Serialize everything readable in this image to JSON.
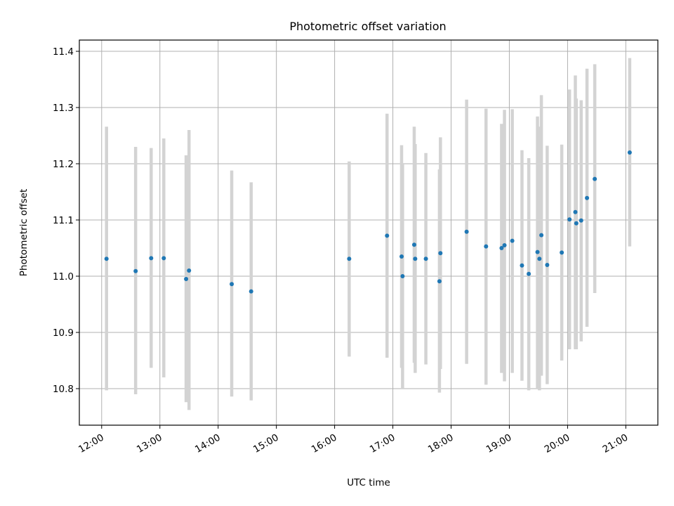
{
  "chart_data": {
    "type": "scatter",
    "title": "Photometric offset variation",
    "xlabel": "UTC time",
    "ylabel": "Photometric offset",
    "xlim": [
      "11:37",
      "21:33"
    ],
    "ylim": [
      10.735,
      11.42
    ],
    "grid": true,
    "x_tick_labels": [
      "12:00",
      "13:00",
      "14:00",
      "15:00",
      "16:00",
      "17:00",
      "18:00",
      "19:00",
      "20:00",
      "21:00"
    ],
    "y_tick_labels": [
      "10.8",
      "10.9",
      "11.0",
      "11.1",
      "11.2",
      "11.3",
      "11.4"
    ],
    "y_ticks": [
      10.8,
      10.9,
      11.0,
      11.1,
      11.2,
      11.3,
      11.4
    ],
    "point_color": "#1f77b4",
    "errorbar_color": "#d3d3d3",
    "points": [
      {
        "x": "12:05",
        "y": 11.031,
        "ylow": 10.797,
        "yhigh": 11.266
      },
      {
        "x": "12:35",
        "y": 11.009,
        "ylow": 10.79,
        "yhigh": 11.23
      },
      {
        "x": "12:51",
        "y": 11.032,
        "ylow": 10.837,
        "yhigh": 11.228
      },
      {
        "x": "13:04",
        "y": 11.032,
        "ylow": 10.82,
        "yhigh": 11.245
      },
      {
        "x": "13:27",
        "y": 10.995,
        "ylow": 10.776,
        "yhigh": 11.215
      },
      {
        "x": "13:30",
        "y": 11.01,
        "ylow": 10.762,
        "yhigh": 11.26
      },
      {
        "x": "14:14",
        "y": 10.986,
        "ylow": 10.786,
        "yhigh": 11.188
      },
      {
        "x": "14:34",
        "y": 10.973,
        "ylow": 10.779,
        "yhigh": 11.167
      },
      {
        "x": "16:15",
        "y": 11.031,
        "ylow": 10.857,
        "yhigh": 11.204
      },
      {
        "x": "16:54",
        "y": 11.072,
        "ylow": 10.855,
        "yhigh": 11.289
      },
      {
        "x": "17:09",
        "y": 11.035,
        "ylow": 10.837,
        "yhigh": 11.233
      },
      {
        "x": "17:10",
        "y": 11.0,
        "ylow": 10.8,
        "yhigh": 11.2
      },
      {
        "x": "17:22",
        "y": 11.056,
        "ylow": 10.846,
        "yhigh": 11.266
      },
      {
        "x": "17:23",
        "y": 11.031,
        "ylow": 10.828,
        "yhigh": 11.235
      },
      {
        "x": "17:34",
        "y": 11.031,
        "ylow": 10.843,
        "yhigh": 11.219
      },
      {
        "x": "17:48",
        "y": 10.991,
        "ylow": 10.793,
        "yhigh": 11.19
      },
      {
        "x": "17:49",
        "y": 11.041,
        "ylow": 10.835,
        "yhigh": 11.247
      },
      {
        "x": "18:16",
        "y": 11.079,
        "ylow": 10.844,
        "yhigh": 11.314
      },
      {
        "x": "18:36",
        "y": 11.053,
        "ylow": 10.807,
        "yhigh": 11.298
      },
      {
        "x": "18:52",
        "y": 11.05,
        "ylow": 10.828,
        "yhigh": 11.271
      },
      {
        "x": "18:55",
        "y": 11.055,
        "ylow": 10.813,
        "yhigh": 11.296
      },
      {
        "x": "19:03",
        "y": 11.063,
        "ylow": 10.828,
        "yhigh": 11.297
      },
      {
        "x": "19:13",
        "y": 11.019,
        "ylow": 10.814,
        "yhigh": 11.224
      },
      {
        "x": "19:20",
        "y": 11.004,
        "ylow": 10.797,
        "yhigh": 11.21
      },
      {
        "x": "19:29",
        "y": 11.043,
        "ylow": 10.8,
        "yhigh": 11.284
      },
      {
        "x": "19:31",
        "y": 11.031,
        "ylow": 10.797,
        "yhigh": 11.266
      },
      {
        "x": "19:33",
        "y": 11.073,
        "ylow": 10.823,
        "yhigh": 11.322
      },
      {
        "x": "19:39",
        "y": 11.02,
        "ylow": 10.808,
        "yhigh": 11.232
      },
      {
        "x": "19:54",
        "y": 11.042,
        "ylow": 10.85,
        "yhigh": 11.234
      },
      {
        "x": "20:02",
        "y": 11.101,
        "ylow": 10.87,
        "yhigh": 11.332
      },
      {
        "x": "20:08",
        "y": 11.114,
        "ylow": 10.87,
        "yhigh": 11.357
      },
      {
        "x": "20:09",
        "y": 11.094,
        "ylow": 10.87,
        "yhigh": 11.316
      },
      {
        "x": "20:14",
        "y": 11.099,
        "ylow": 10.884,
        "yhigh": 11.313
      },
      {
        "x": "20:20",
        "y": 11.139,
        "ylow": 10.91,
        "yhigh": 11.369
      },
      {
        "x": "20:28",
        "y": 11.173,
        "ylow": 10.97,
        "yhigh": 11.377
      },
      {
        "x": "21:04",
        "y": 11.22,
        "ylow": 11.053,
        "yhigh": 11.388
      }
    ]
  }
}
